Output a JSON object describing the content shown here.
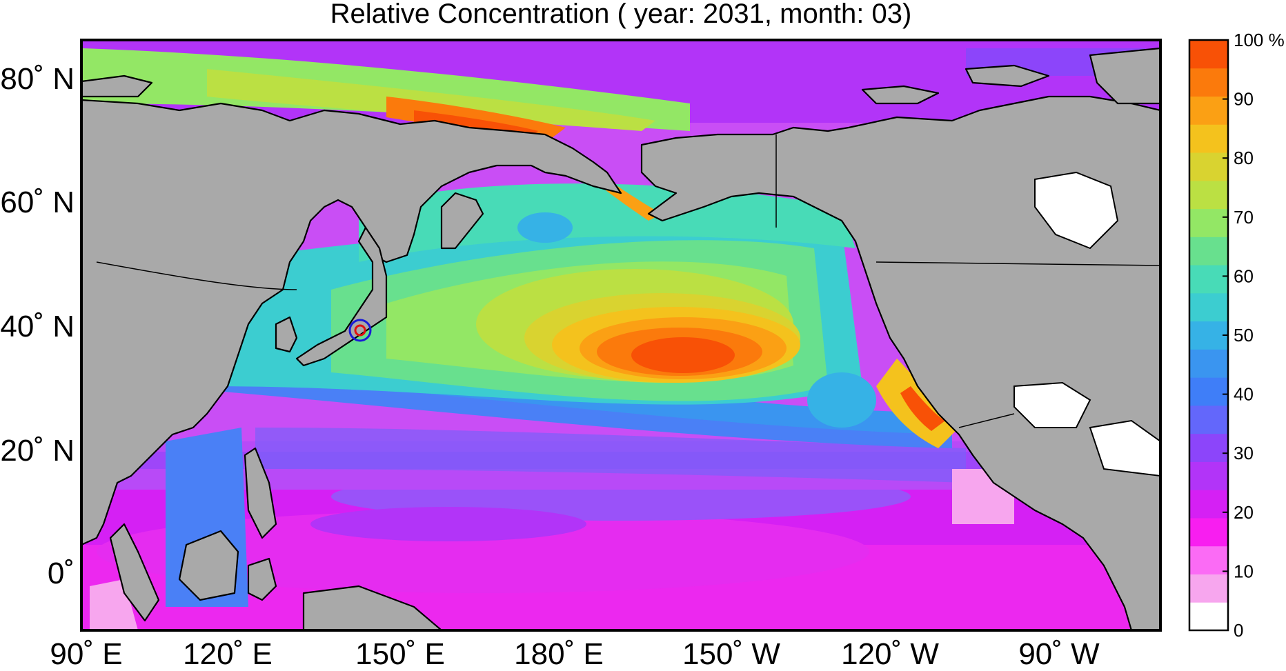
{
  "title": "Relative Concentration ( year: 2031, month: 03)",
  "map": {
    "lat_labels": [
      "80˚ N",
      "60˚ N",
      "40˚ N",
      "20˚ N",
      "0˚"
    ],
    "lon_labels": [
      "90˚ E",
      "120˚ E",
      "150˚ E",
      "180˚ E",
      "150˚ W",
      "120˚ W",
      "90˚ W"
    ],
    "source_marker": {
      "name": "release-point",
      "lat": 37.4,
      "lon": 141.0
    }
  },
  "colorbar": {
    "unit": "%",
    "labels": [
      "100 %",
      "90",
      "80",
      "70",
      "60",
      "50",
      "40",
      "30",
      "20",
      "10",
      "0"
    ],
    "colors": [
      "#ffffff",
      "#f7a6ee",
      "#fb6bf5",
      "#f81ef0",
      "#d520f4",
      "#b234f8",
      "#8c45fa",
      "#6367fb",
      "#3f7ef8",
      "#3a95f0",
      "#36b2e6",
      "#3ccdd0",
      "#48dbb7",
      "#68e08e",
      "#93e765",
      "#bbe043",
      "#d9d330",
      "#f4c21d",
      "#fba014",
      "#fb7a0c",
      "#f85106"
    ]
  },
  "colors": {
    "land": "#a9a9a9",
    "coast": "#000000",
    "frame": "#000000"
  }
}
